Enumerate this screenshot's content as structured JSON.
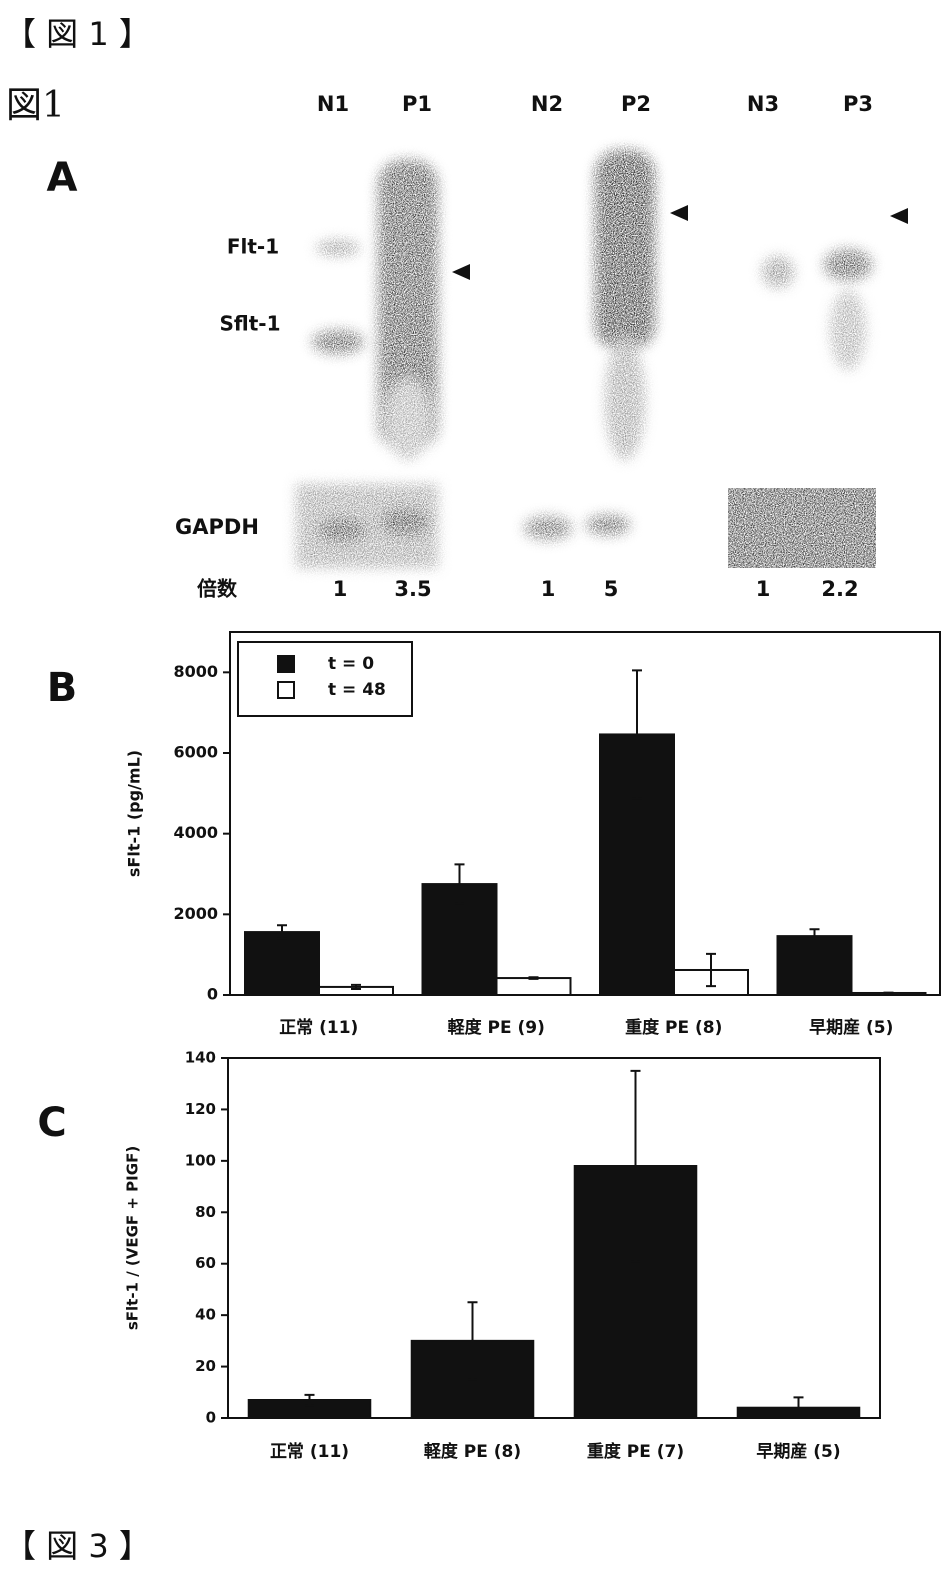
{
  "page_header": "【 図 1 】",
  "figure_label": "図1",
  "panel_a": {
    "panel": "A",
    "lanes": [
      "N1",
      "P1",
      "N2",
      "P2",
      "N3",
      "P3"
    ],
    "bands": [
      "Flt-1",
      "Sflt-1"
    ],
    "loading_control": "GAPDH",
    "fold_label": "倍数",
    "fold_values": [
      "1",
      "3.5",
      "1",
      "5",
      "1",
      "2.2"
    ]
  },
  "chart_data": [
    {
      "type": "bar",
      "panel": "B",
      "y_label": "sFlt-1 (pg/mL)",
      "categories": [
        "正常 (11)",
        "軽度 PE (9)",
        "重度 PE (8)",
        "早期産 (5)"
      ],
      "series": [
        {
          "name": "t = 0",
          "color": "#111111",
          "values": [
            1560,
            2750,
            6460,
            1460
          ],
          "errors": [
            170,
            490,
            1590,
            170
          ]
        },
        {
          "name": "t = 48",
          "color": "#ffffff",
          "values": [
            200,
            420,
            620,
            50
          ],
          "errors": [
            50,
            20,
            400,
            10
          ]
        }
      ],
      "ylim": [
        0,
        9000
      ],
      "yticks": [
        0,
        2000,
        4000,
        6000,
        8000
      ],
      "legend": "top-left"
    },
    {
      "type": "bar",
      "panel": "C",
      "y_label": "sFlt-1 / (VEGF + PIGF)",
      "categories": [
        "正常 (11)",
        "軽度 PE (8)",
        "重度 PE (7)",
        "早期産 (5)"
      ],
      "values": [
        7,
        30,
        98,
        4
      ],
      "errors": [
        2,
        15,
        37,
        4
      ],
      "color": "#111111",
      "ylim": [
        0,
        140
      ],
      "yticks": [
        0,
        20,
        40,
        60,
        80,
        100,
        120,
        140
      ]
    }
  ],
  "page_footer": "【 図 3 】"
}
